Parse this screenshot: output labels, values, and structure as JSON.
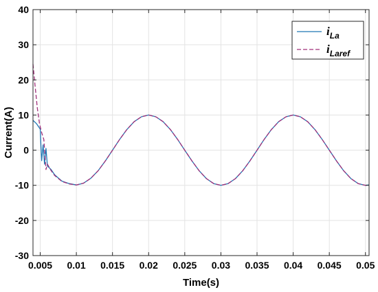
{
  "chart_data": {
    "type": "line",
    "xlabel": "Time(s)",
    "ylabel": "Current(A)",
    "xlim": [
      0.004,
      0.0505
    ],
    "ylim": [
      -30,
      40
    ],
    "x_ticks": [
      0.005,
      0.01,
      0.015,
      0.02,
      0.025,
      0.03,
      0.035,
      0.04,
      0.045,
      0.05
    ],
    "x_tick_labels": [
      "0.005",
      "0.01",
      "0.015",
      "0.02",
      "0.025",
      "0.03",
      "0.035",
      "0.04",
      "0.045",
      "0.05"
    ],
    "y_ticks": [
      -30,
      -20,
      -10,
      0,
      10,
      20,
      30,
      40
    ],
    "y_tick_labels": [
      "-30",
      "-20",
      "-10",
      "0",
      "10",
      "20",
      "30",
      "40"
    ],
    "grid": true,
    "legend_position": "top-right",
    "series": [
      {
        "name": "i_La",
        "legend_main": "i",
        "legend_sub": "La",
        "color": "#1f77b4",
        "style": "solid",
        "x": [
          0.004,
          0.0045,
          0.005,
          0.0052,
          0.0054,
          0.0056,
          0.0058,
          0.006,
          0.0065,
          0.007,
          0.008,
          0.009,
          0.01,
          0.011,
          0.012,
          0.013,
          0.014,
          0.015,
          0.016,
          0.017,
          0.018,
          0.019,
          0.02,
          0.021,
          0.022,
          0.023,
          0.024,
          0.025,
          0.026,
          0.027,
          0.028,
          0.029,
          0.03,
          0.031,
          0.032,
          0.033,
          0.034,
          0.035,
          0.036,
          0.037,
          0.038,
          0.039,
          0.04,
          0.041,
          0.042,
          0.043,
          0.044,
          0.045,
          0.046,
          0.047,
          0.048,
          0.049,
          0.05,
          0.0505
        ],
        "y": [
          8.5,
          7.5,
          6.0,
          -3.0,
          1.5,
          -4.0,
          0.5,
          -4.5,
          -5.5,
          -7.0,
          -8.8,
          -9.5,
          -9.9,
          -9.4,
          -8.0,
          -5.9,
          -3.1,
          0.0,
          3.1,
          5.9,
          8.1,
          9.5,
          10.0,
          9.5,
          8.1,
          5.9,
          3.1,
          0.0,
          -3.1,
          -5.9,
          -8.1,
          -9.5,
          -10.0,
          -9.5,
          -8.1,
          -5.9,
          -3.1,
          0.0,
          3.1,
          5.9,
          8.1,
          9.5,
          10.0,
          9.5,
          8.1,
          5.9,
          3.1,
          0.0,
          -3.1,
          -5.9,
          -8.1,
          -9.5,
          -10.0,
          -9.9
        ]
      },
      {
        "name": "i_Laref",
        "legend_main": "i",
        "legend_sub": "Laref",
        "color": "#a0307a",
        "style": "dashed",
        "x": [
          0.004,
          0.0043,
          0.0046,
          0.0049,
          0.0052,
          0.0055,
          0.0058,
          0.006,
          0.0065,
          0.007,
          0.008,
          0.009,
          0.01,
          0.011,
          0.012,
          0.013,
          0.014,
          0.015,
          0.016,
          0.017,
          0.018,
          0.019,
          0.02,
          0.021,
          0.022,
          0.023,
          0.024,
          0.025,
          0.026,
          0.027,
          0.028,
          0.029,
          0.03,
          0.031,
          0.032,
          0.033,
          0.034,
          0.035,
          0.036,
          0.037,
          0.038,
          0.039,
          0.04,
          0.041,
          0.042,
          0.043,
          0.044,
          0.045,
          0.046,
          0.047,
          0.048,
          0.049,
          0.05,
          0.0505
        ],
        "y": [
          24.5,
          18.0,
          12.0,
          7.5,
          5.0,
          3.0,
          -5.5,
          -4.0,
          -5.8,
          -7.2,
          -8.9,
          -9.6,
          -9.9,
          -9.4,
          -8.0,
          -5.9,
          -3.1,
          0.0,
          3.1,
          5.9,
          8.1,
          9.5,
          10.0,
          9.5,
          8.1,
          5.9,
          3.1,
          0.0,
          -3.1,
          -5.9,
          -8.1,
          -9.5,
          -10.0,
          -9.5,
          -8.1,
          -5.9,
          -3.1,
          0.0,
          3.1,
          5.9,
          8.1,
          9.5,
          10.0,
          9.5,
          8.1,
          5.9,
          3.1,
          0.0,
          -3.1,
          -5.9,
          -8.1,
          -9.5,
          -10.0,
          -9.9
        ]
      }
    ]
  }
}
